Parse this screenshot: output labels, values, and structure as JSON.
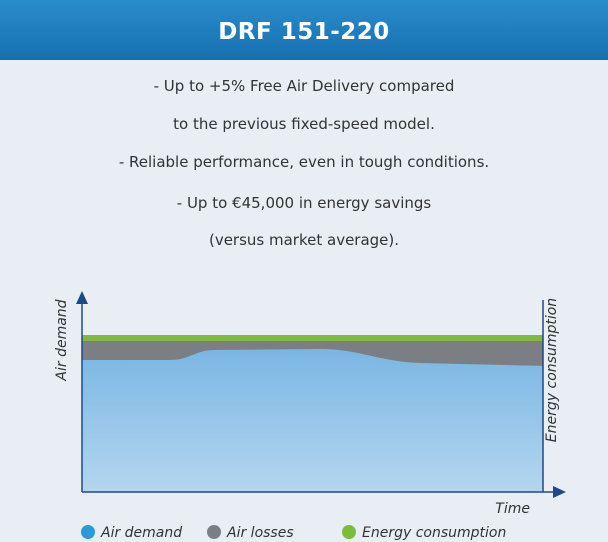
{
  "header": {
    "title": "DRF 151-220"
  },
  "bullets": [
    "- Up to +5% Free Air Delivery compared",
    "to the previous fixed-speed model.",
    "- Reliable performance, even in tough conditions.",
    "- Up to €45,000 in energy savings",
    "(versus market average)."
  ],
  "diagram": {
    "y_label": "Air demand",
    "y2_label": "Energy consumption",
    "x_label": "Time"
  },
  "legend": [
    {
      "label": "Air demand",
      "color": "#2a9ad8"
    },
    {
      "label": "Air losses",
      "color": "#7b7f83"
    },
    {
      "label": "Energy consumption",
      "color": "#7dbb3a"
    }
  ]
}
